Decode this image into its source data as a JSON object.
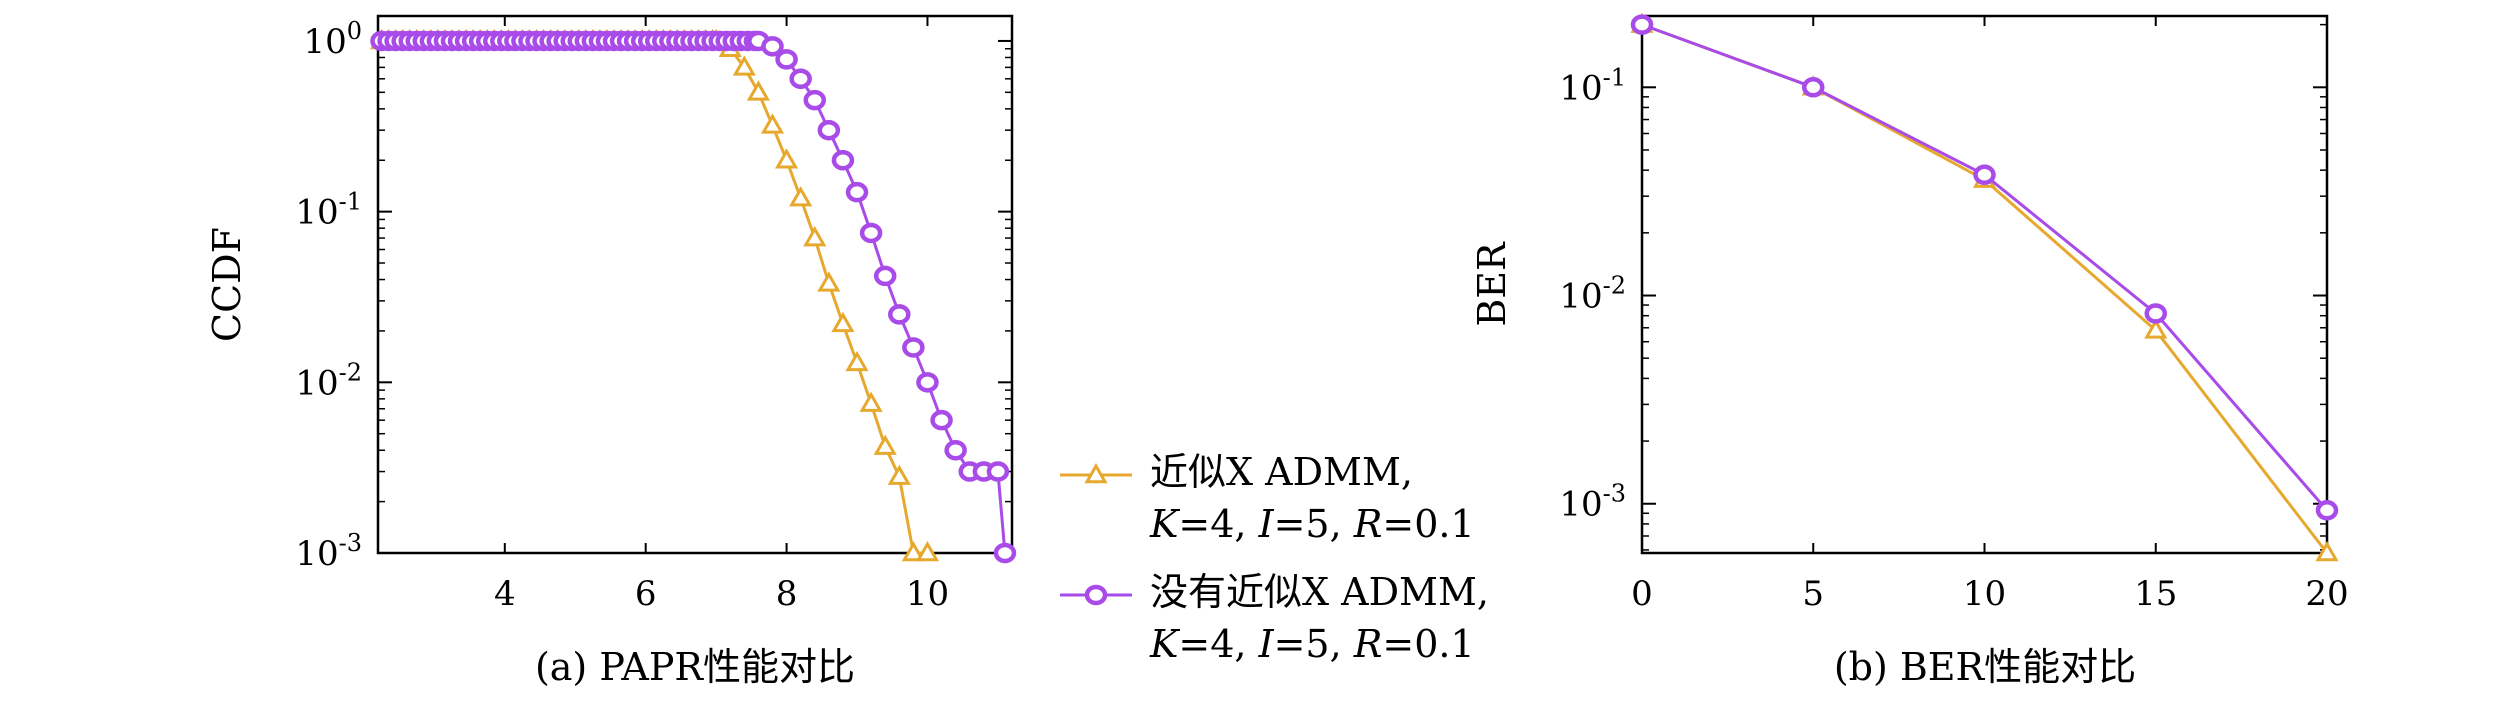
{
  "chart_data": [
    {
      "type": "line",
      "caption": "(a) PAPR性能对比",
      "xlabel": "",
      "ylabel": "CCDF",
      "yscale": "log",
      "xlim": [
        2.2,
        11.2
      ],
      "ylim": [
        0.001,
        1.4
      ],
      "xticks": [
        "4",
        "6",
        "8",
        "10"
      ],
      "yticks": [
        {
          "base": "10",
          "exp": "0"
        },
        {
          "base": "10",
          "exp": "-1"
        },
        {
          "base": "10",
          "exp": "-2"
        },
        {
          "base": "10",
          "exp": "-3"
        }
      ],
      "grid": false,
      "series": [
        {
          "name": "近似X ADMM, K=4, I=5, R=0.1",
          "color": "#E6A92E",
          "marker": "triangle",
          "x": [
            7.0,
            7.2,
            7.4,
            7.6,
            7.8,
            8.0,
            8.2,
            8.4,
            8.6,
            8.8,
            9.0,
            9.2,
            9.4,
            9.6,
            9.8,
            10.0
          ],
          "y": [
            1.0,
            0.9,
            0.7,
            0.5,
            0.32,
            0.2,
            0.12,
            0.07,
            0.038,
            0.022,
            0.013,
            0.0075,
            0.0042,
            0.0028,
            0.001,
            0.001
          ]
        },
        {
          "name": "没有近似X ADMM, K=4, I=5, R=0.1",
          "color": "#A84BE8",
          "marker": "circle",
          "x": [
            7.6,
            7.8,
            8.0,
            8.2,
            8.4,
            8.6,
            8.8,
            9.0,
            9.2,
            9.4,
            9.6,
            9.8,
            10.0,
            10.2,
            10.4,
            10.6,
            10.8,
            11.0,
            11.1
          ],
          "y": [
            1.0,
            0.93,
            0.78,
            0.6,
            0.45,
            0.3,
            0.2,
            0.13,
            0.075,
            0.042,
            0.025,
            0.016,
            0.01,
            0.006,
            0.004,
            0.003,
            0.003,
            0.003,
            0.001
          ]
        }
      ]
    },
    {
      "type": "line",
      "caption": "(b) BER性能对比",
      "xlabel": "",
      "ylabel": "BER",
      "yscale": "log",
      "xlim": [
        0,
        20
      ],
      "ylim": [
        0.00058,
        0.22
      ],
      "xticks": [
        "0",
        "5",
        "10",
        "15",
        "20"
      ],
      "yticks": [
        {
          "base": "10",
          "exp": "-1"
        },
        {
          "base": "10",
          "exp": "-2"
        },
        {
          "base": "10",
          "exp": "-3"
        }
      ],
      "grid": false,
      "series": [
        {
          "name": "近似X ADMM, K=4, I=5, R=0.1",
          "color": "#E6A92E",
          "marker": "triangle",
          "x": [
            0,
            5,
            10,
            15,
            20
          ],
          "y": [
            0.2,
            0.1,
            0.036,
            0.0068,
            0.00058
          ]
        },
        {
          "name": "没有近似X ADMM, K=4, I=5, R=0.1",
          "color": "#A84BE8",
          "marker": "circle",
          "x": [
            0,
            5,
            10,
            15,
            20
          ],
          "y": [
            0.2,
            0.1,
            0.038,
            0.0082,
            0.00093
          ]
        }
      ]
    }
  ],
  "legend": {
    "items": [
      {
        "line1": "近似X ADMM,",
        "line2_parts": [
          [
            "K",
            true
          ],
          [
            "=4, ",
            false
          ],
          [
            "I",
            true
          ],
          [
            "=5, ",
            false
          ],
          [
            "R",
            true
          ],
          [
            "=0.1",
            false
          ]
        ],
        "marker": "triangle",
        "color": "#E6A92E"
      },
      {
        "line1": "没有近似X ADMM,",
        "line2_parts": [
          [
            "K",
            true
          ],
          [
            "=4, ",
            false
          ],
          [
            "I",
            true
          ],
          [
            "=5, ",
            false
          ],
          [
            "R",
            true
          ],
          [
            "=0.1",
            false
          ]
        ],
        "marker": "circle",
        "color": "#A84BE8"
      }
    ]
  }
}
